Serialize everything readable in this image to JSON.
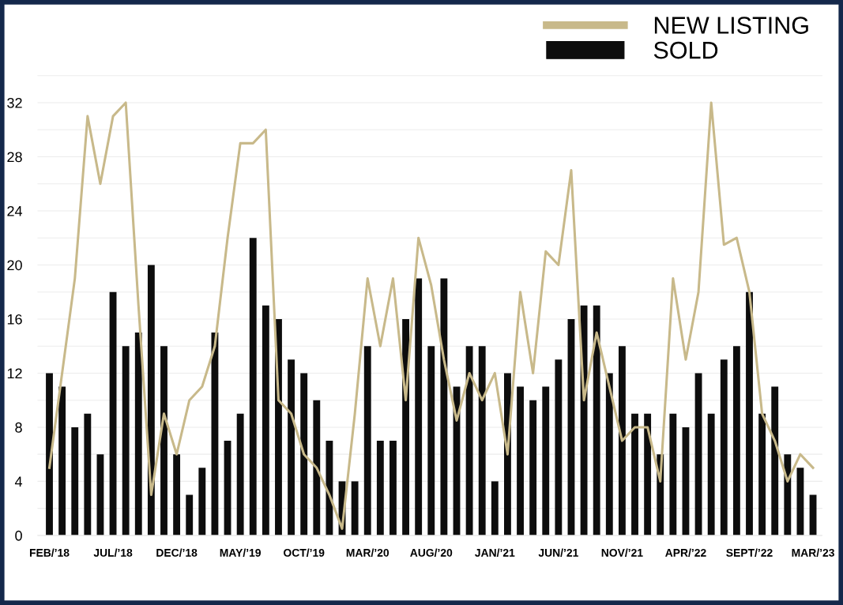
{
  "chart_data": {
    "type": "bar",
    "categories": [
      "FEB/’18",
      null,
      null,
      null,
      null,
      "JUL/’18",
      null,
      null,
      null,
      null,
      "DEC/’18",
      null,
      null,
      null,
      null,
      "MAY/’19",
      null,
      null,
      null,
      null,
      "OCT/’19",
      null,
      null,
      null,
      null,
      "MAR/’20",
      null,
      null,
      null,
      null,
      "AUG/’20",
      null,
      null,
      null,
      null,
      "JAN/’21",
      null,
      null,
      null,
      null,
      "JUN/’21",
      null,
      null,
      null,
      null,
      "NOV/’21",
      null,
      null,
      null,
      null,
      "APR/’22",
      null,
      null,
      null,
      null,
      "SEPT/’22",
      null,
      null,
      null,
      null,
      "MAR/’23"
    ],
    "series": [
      {
        "name": "NEW LISTING",
        "type": "line",
        "color": "#c8b98a",
        "values": [
          5,
          12,
          19,
          31,
          26,
          31,
          32,
          17,
          3,
          9,
          6,
          10,
          11,
          14,
          22,
          29,
          29,
          30,
          10,
          9,
          6,
          5,
          3,
          0.5,
          9,
          19,
          14,
          19,
          10,
          22,
          18.5,
          13,
          8.5,
          12,
          10,
          12,
          6,
          18,
          12,
          21,
          20,
          27,
          10,
          15,
          11,
          7,
          8,
          8,
          4,
          19,
          13,
          18,
          32,
          21.5,
          22,
          18,
          9,
          7,
          4,
          6,
          5
        ]
      },
      {
        "name": "SOLD",
        "color": "#0d0d0d",
        "values": [
          12,
          11,
          8,
          9,
          6,
          18,
          14,
          15,
          20,
          14,
          6,
          3,
          5,
          15,
          7,
          9,
          22,
          17,
          16,
          13,
          12,
          10,
          7,
          4,
          4,
          14,
          7,
          7,
          16,
          19,
          14,
          19,
          11,
          14,
          14,
          4,
          12,
          11,
          10,
          11,
          13,
          16,
          17,
          17,
          12,
          14,
          9,
          9,
          6,
          9,
          8,
          12,
          9,
          13,
          14,
          18,
          9,
          11,
          6,
          5,
          3
        ]
      }
    ],
    "ylim": [
      0,
      34
    ],
    "yticks": [
      0,
      {
        "value": 2,
        "label": null
      },
      4,
      {
        "value": 6,
        "label": null
      },
      8,
      {
        "value": 10,
        "label": null
      },
      12,
      {
        "value": 14,
        "label": null
      },
      16,
      {
        "value": 18,
        "label": null
      },
      20,
      {
        "value": 22,
        "label": null
      },
      24,
      {
        "value": 26,
        "label": null
      },
      28,
      {
        "value": 30,
        "label": null
      },
      32,
      {
        "value": 34,
        "label": null
      }
    ],
    "grid": "y",
    "legend": "top right",
    "marker": "none",
    "line_style": "solid"
  }
}
